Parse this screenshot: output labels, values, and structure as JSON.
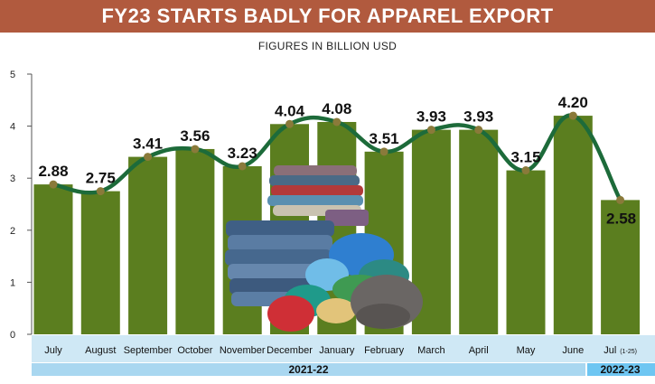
{
  "title": "FY23 STARTS BADLY FOR APPAREL EXPORT",
  "subtitle": "FIGURES IN BILLION USD",
  "colors": {
    "title_bar": "#b15a3e",
    "bar": "#5b7e1f",
    "line": "#1d6b3a",
    "marker": "#8a7a3a",
    "axis_band": "#cfe8f5",
    "fy_band": "#a9d7f0",
    "fy_band_current": "#6ec6f2"
  },
  "illustration": "folded-clothes-pile-image",
  "chart_data": {
    "type": "bar",
    "title": "FY23 STARTS BADLY FOR APPAREL EXPORT",
    "subtitle": "FIGURES IN BILLION USD",
    "categories": [
      "July",
      "August",
      "September",
      "October",
      "November",
      "December",
      "January",
      "February",
      "March",
      "April",
      "May",
      "June",
      "Jul"
    ],
    "category_suffix": [
      "",
      "",
      "",
      "",
      "",
      "",
      "",
      "",
      "",
      "",
      "",
      "",
      "(1-25)"
    ],
    "values": [
      2.88,
      2.75,
      3.41,
      3.56,
      3.23,
      4.04,
      4.08,
      3.51,
      3.93,
      3.93,
      3.15,
      4.2,
      2.58
    ],
    "value_labels": [
      "2.88",
      "2.75",
      "3.41",
      "3.56",
      "3.23",
      "4.04",
      "4.08",
      "3.51",
      "3.93",
      "3.93",
      "3.15",
      "4.20",
      "2.58"
    ],
    "overlay_line": true,
    "yticks": [
      "0",
      "1",
      "2",
      "3",
      "4",
      "5"
    ],
    "ylim": [
      0,
      5
    ],
    "grid": false,
    "groups": [
      {
        "label": "2021-22",
        "count": 12
      },
      {
        "label": "2022-23",
        "count": 1
      }
    ]
  }
}
